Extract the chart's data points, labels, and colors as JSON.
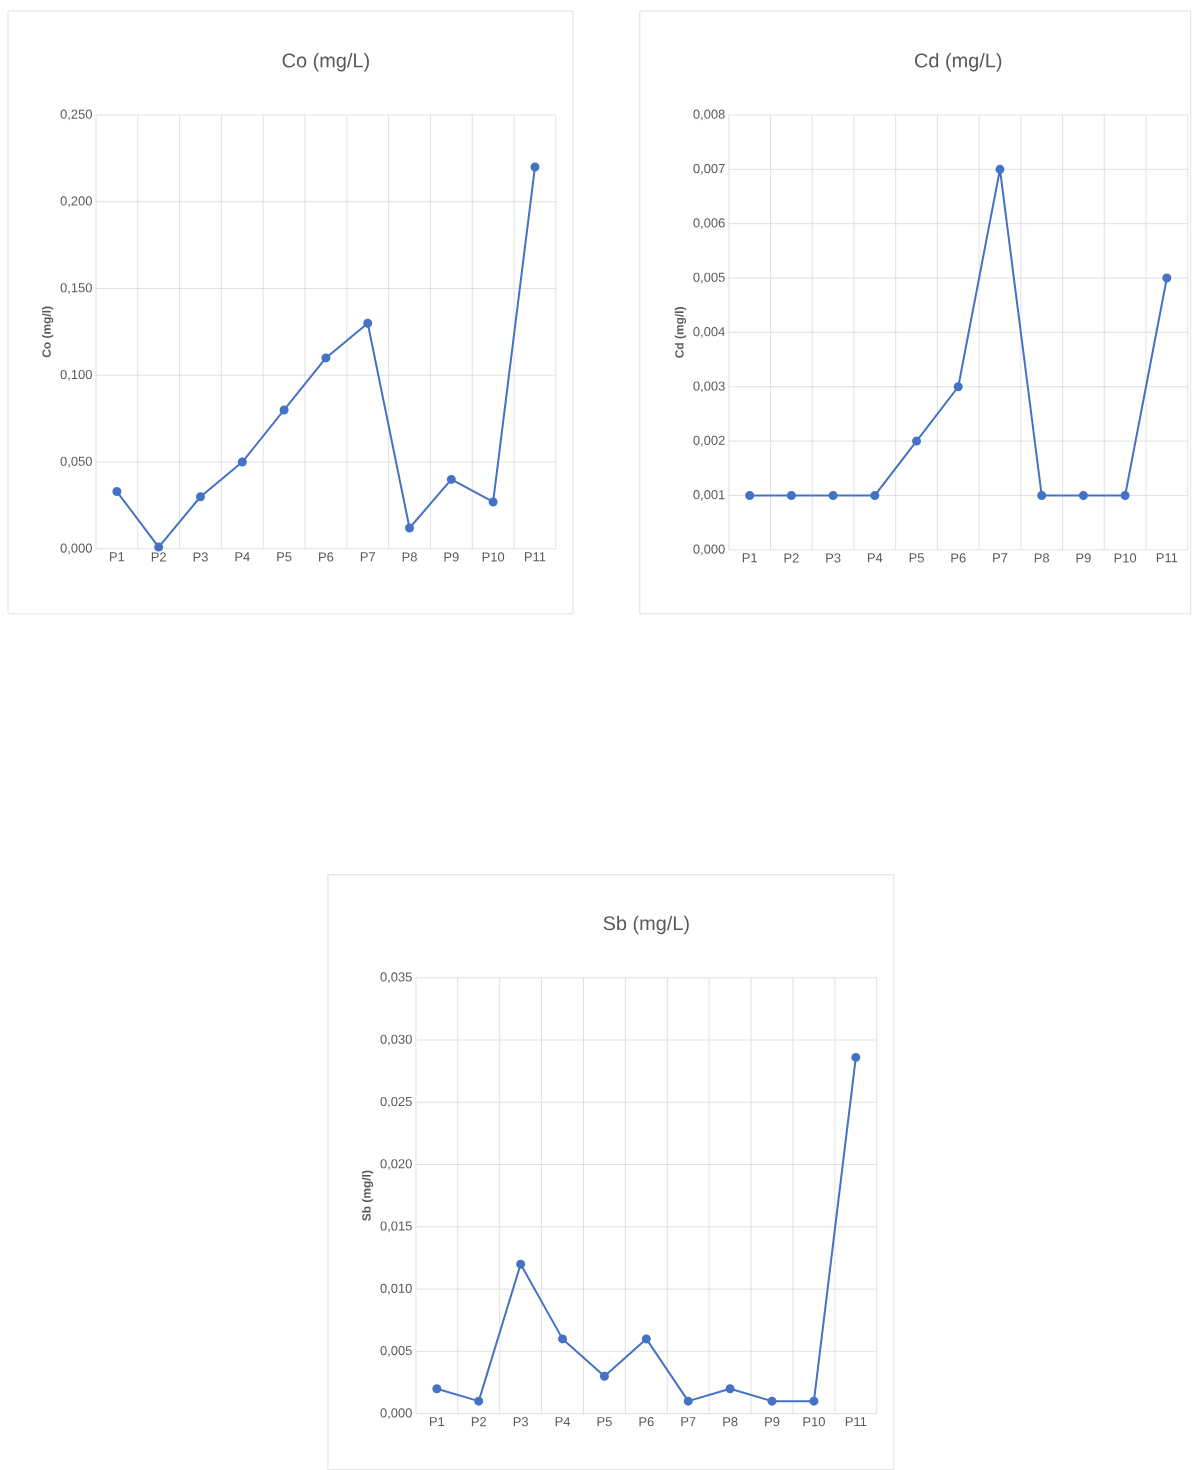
{
  "chart_data": [
    {
      "type": "line",
      "title": "Co (mg/L)",
      "ylabel": "Co (mg/l)",
      "categories": [
        "P1",
        "P2",
        "P3",
        "P4",
        "P5",
        "P6",
        "P7",
        "P8",
        "P9",
        "P10",
        "P11"
      ],
      "values": [
        0.033,
        0.001,
        0.03,
        0.05,
        0.08,
        0.11,
        0.13,
        0.012,
        0.04,
        0.027,
        0.22
      ],
      "color": "#4472c4",
      "marker": "circle",
      "grid": true,
      "ylim": [
        0,
        0.25
      ],
      "yticks": [
        {
          "value": 0,
          "label": "0,000"
        },
        {
          "value": 0.05,
          "label": "0,050"
        },
        {
          "value": 0.1,
          "label": "0,100"
        },
        {
          "value": 0.15,
          "label": "0,150"
        },
        {
          "value": 0.2,
          "label": "0,200"
        },
        {
          "value": 0.25,
          "label": "0,250"
        }
      ]
    },
    {
      "type": "line",
      "title": "Cd (mg/L)",
      "ylabel": "Cd (mg/l)",
      "categories": [
        "P1",
        "P2",
        "P3",
        "P4",
        "P5",
        "P6",
        "P7",
        "P8",
        "P9",
        "P10",
        "P11"
      ],
      "values": [
        0.001,
        0.001,
        0.001,
        0.001,
        0.002,
        0.003,
        0.007,
        0.001,
        0.001,
        0.001,
        0.005
      ],
      "color": "#4472c4",
      "marker": "circle",
      "grid": true,
      "ylim": [
        0,
        0.008
      ],
      "yticks": [
        {
          "value": 0,
          "label": "0,000"
        },
        {
          "value": 0.001,
          "label": "0,001"
        },
        {
          "value": 0.002,
          "label": "0,002"
        },
        {
          "value": 0.003,
          "label": "0,003"
        },
        {
          "value": 0.004,
          "label": "0,004"
        },
        {
          "value": 0.005,
          "label": "0,005"
        },
        {
          "value": 0.006,
          "label": "0,006"
        },
        {
          "value": 0.007,
          "label": "0,007"
        },
        {
          "value": 0.008,
          "label": "0,008"
        }
      ]
    },
    {
      "type": "line",
      "title": "Sb (mg/L)",
      "ylabel": "Sb (mg/l)",
      "categories": [
        "P1",
        "P2",
        "P3",
        "P4",
        "P5",
        "P6",
        "P7",
        "P8",
        "P9",
        "P10",
        "P11"
      ],
      "values": [
        0.002,
        0.001,
        0.012,
        0.006,
        0.003,
        0.006,
        0.001,
        0.002,
        0.001,
        0.001,
        0.0286
      ],
      "color": "#4472c4",
      "marker": "circle",
      "grid": true,
      "ylim": [
        0,
        0.035
      ],
      "yticks": [
        {
          "value": 0,
          "label": "0,000"
        },
        {
          "value": 0.005,
          "label": "0,005"
        },
        {
          "value": 0.01,
          "label": "0,010"
        },
        {
          "value": 0.015,
          "label": "0,015"
        },
        {
          "value": 0.02,
          "label": "0,020"
        },
        {
          "value": 0.025,
          "label": "0,025"
        },
        {
          "value": 0.03,
          "label": "0,030"
        },
        {
          "value": 0.035,
          "label": "0,035"
        }
      ]
    }
  ]
}
